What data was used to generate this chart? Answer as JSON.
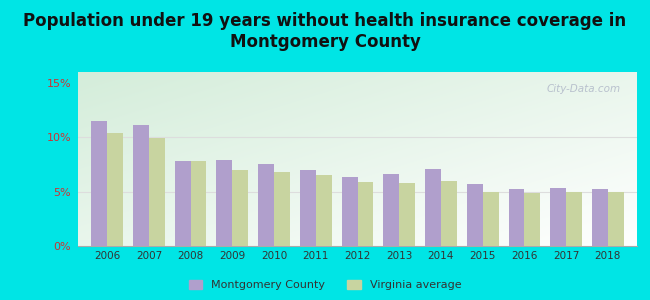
{
  "title": "Population under 19 years without health insurance coverage in\nMontgomery County",
  "years": [
    2006,
    2007,
    2008,
    2009,
    2010,
    2011,
    2012,
    2013,
    2014,
    2015,
    2016,
    2017,
    2018
  ],
  "montgomery": [
    11.5,
    11.1,
    7.8,
    7.9,
    7.5,
    7.0,
    6.3,
    6.6,
    7.1,
    5.7,
    5.2,
    5.3,
    5.2
  ],
  "virginia": [
    10.4,
    9.9,
    7.8,
    7.0,
    6.8,
    6.5,
    5.9,
    5.8,
    6.0,
    5.0,
    4.9,
    5.0,
    5.0
  ],
  "bar_color_montgomery": "#b09fcc",
  "bar_color_virginia": "#c8d4a0",
  "bg_outer": "#00e5e5",
  "title_fontsize": 12,
  "ylim": [
    0,
    16
  ],
  "yticks": [
    0,
    5,
    10,
    15
  ],
  "ytick_labels": [
    "0%",
    "5%",
    "10%",
    "15%"
  ],
  "watermark": "City-Data.com",
  "legend_montgomery": "Montgomery County",
  "legend_virginia": "Virginia average",
  "grid_color": "#dddddd",
  "axis_label_color": "#cc3333"
}
